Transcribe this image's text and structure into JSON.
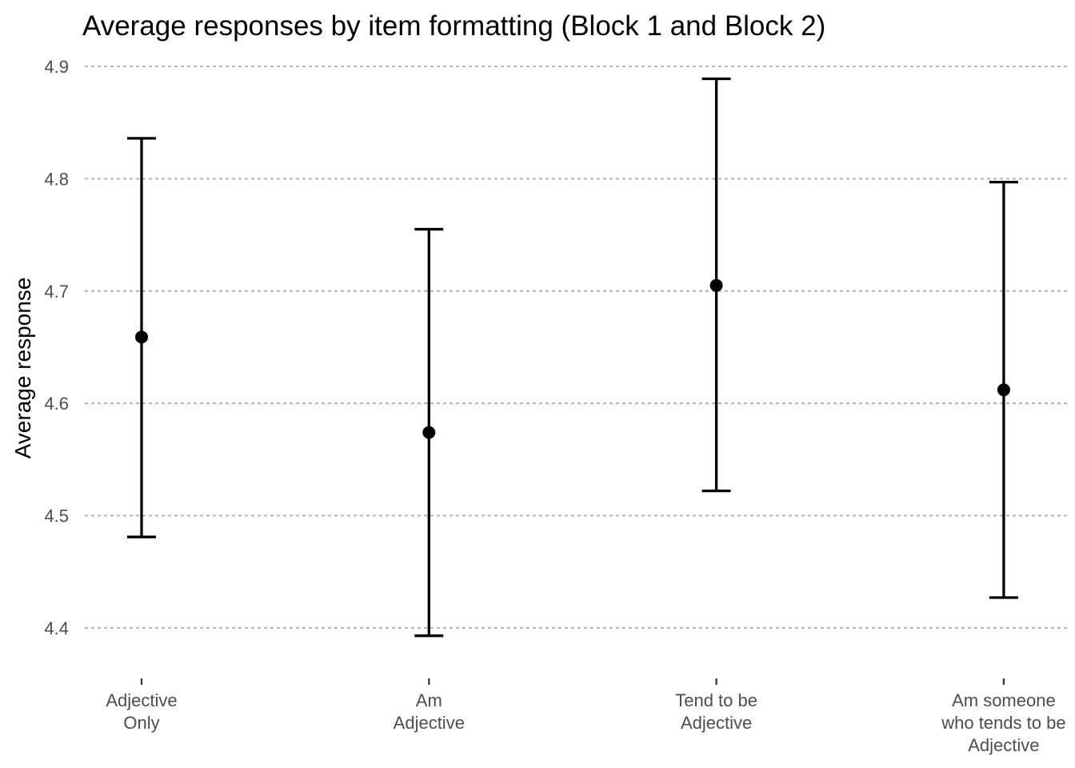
{
  "chart_data": {
    "type": "errorbar",
    "title": "Average responses by item formatting (Block 1 and Block 2)",
    "xlabel": "",
    "ylabel": "Average response",
    "ylim": [
      4.365,
      4.915
    ],
    "yticks": [
      "4.4",
      "4.5",
      "4.6",
      "4.7",
      "4.8",
      "4.9"
    ],
    "grid": "horizontal-dotted",
    "categories": [
      [
        "Adjective",
        "Only"
      ],
      [
        "Am",
        "Adjective"
      ],
      [
        "Tend to be",
        "Adjective"
      ],
      [
        "Am someone",
        "who tends to be",
        "Adjective"
      ]
    ],
    "means": [
      4.659,
      4.574,
      4.705,
      4.612
    ],
    "lower": [
      4.481,
      4.393,
      4.522,
      4.427
    ],
    "upper": [
      4.836,
      4.755,
      4.889,
      4.797
    ],
    "color": "#000000"
  }
}
